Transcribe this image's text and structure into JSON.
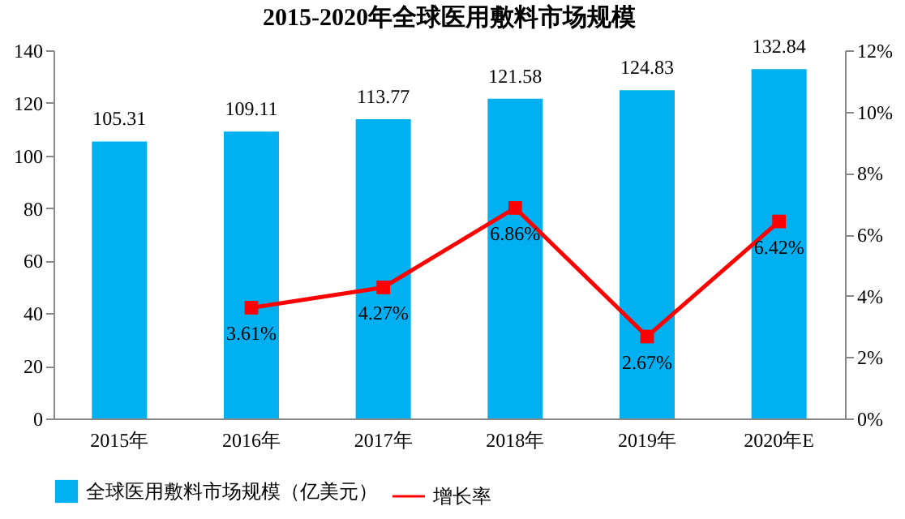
{
  "chart_data": {
    "type": "bar",
    "title": "2015-2020年全球医用敷料市场规模",
    "categories": [
      "2015年",
      "2016年",
      "2017年",
      "2018年",
      "2019年",
      "2020年E"
    ],
    "series": [
      {
        "name": "全球医用敷料市场规模（亿美元）",
        "color": "#00b0f0",
        "values": [
          105.31,
          109.11,
          113.77,
          121.58,
          124.83,
          132.84
        ],
        "value_labels": [
          "105.31",
          "109.11",
          "113.77",
          "121.58",
          "124.83",
          "132.84"
        ]
      },
      {
        "name": "增长率",
        "type": "line",
        "axis": "y2",
        "color": "#ff0000",
        "marker": "square",
        "values": [
          null,
          3.61,
          4.27,
          6.86,
          2.67,
          6.42
        ],
        "value_labels": [
          null,
          "3.61%",
          "4.27%",
          "6.86%",
          "2.67%",
          "6.42%"
        ]
      }
    ],
    "ylim": [
      0,
      140
    ],
    "yticks": [
      0,
      20,
      40,
      60,
      80,
      100,
      120,
      140
    ],
    "y2lim": [
      0,
      12
    ],
    "y2ticks": [
      {
        "value": 0,
        "label": "0%"
      },
      {
        "value": 2,
        "label": "2%"
      },
      {
        "value": 4,
        "label": "4%"
      },
      {
        "value": 6,
        "label": "6%"
      },
      {
        "value": 8,
        "label": "8%"
      },
      {
        "value": 10,
        "label": "10%"
      },
      {
        "value": 12,
        "label": "12%"
      }
    ],
    "grid": false,
    "legend": "bottom"
  }
}
